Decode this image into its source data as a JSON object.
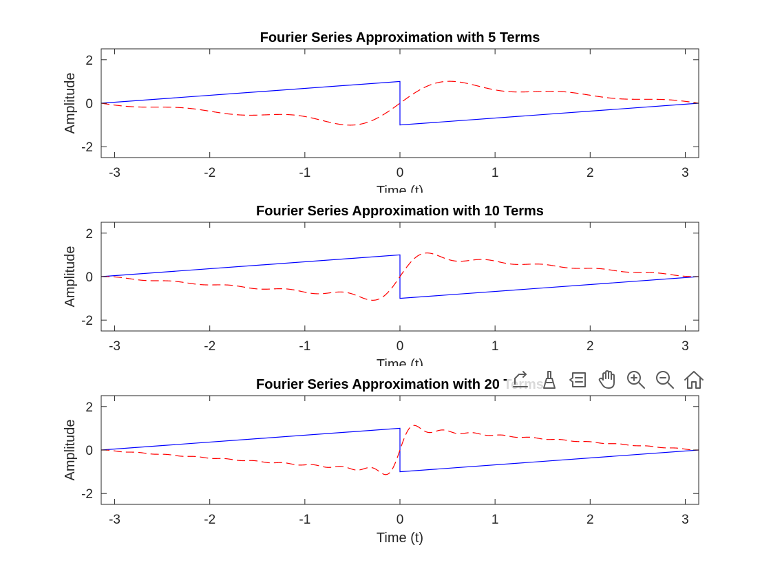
{
  "figure": {
    "background": "#ffffff"
  },
  "chart_data": [
    {
      "type": "line",
      "title": "Fourier Series Approximation with 5 Terms",
      "xlabel": "Time (t)",
      "ylabel": "Amplitude",
      "xlim": [
        -3.14159,
        3.14159
      ],
      "ylim": [
        -2.5,
        2.5
      ],
      "xticks": [
        -3,
        -2,
        -1,
        0,
        1,
        2,
        3
      ],
      "yticks": [
        -2,
        0,
        2
      ],
      "grid": false,
      "n_terms": 5,
      "series": [
        {
          "style": "solid",
          "color": "#0000ff",
          "function": "sawtooth (t/pi) - sign(t)"
        },
        {
          "style": "dashed",
          "color": "#ff0000",
          "function": "partial Fourier sum"
        }
      ]
    },
    {
      "type": "line",
      "title": "Fourier Series Approximation with 10 Terms",
      "xlabel": "Time (t)",
      "ylabel": "Amplitude",
      "xlim": [
        -3.14159,
        3.14159
      ],
      "ylim": [
        -2.5,
        2.5
      ],
      "xticks": [
        -3,
        -2,
        -1,
        0,
        1,
        2,
        3
      ],
      "yticks": [
        -2,
        0,
        2
      ],
      "grid": false,
      "n_terms": 10,
      "series": [
        {
          "style": "solid",
          "color": "#0000ff",
          "function": "sawtooth (t/pi) - sign(t)"
        },
        {
          "style": "dashed",
          "color": "#ff0000",
          "function": "partial Fourier sum"
        }
      ]
    },
    {
      "type": "line",
      "title": "Fourier Series Approximation with 20 Terms",
      "xlabel": "Time (t)",
      "ylabel": "Amplitude",
      "xlim": [
        -3.14159,
        3.14159
      ],
      "ylim": [
        -2.5,
        2.5
      ],
      "xticks": [
        -3,
        -2,
        -1,
        0,
        1,
        2,
        3
      ],
      "yticks": [
        -2,
        0,
        2
      ],
      "grid": false,
      "n_terms": 20,
      "series": [
        {
          "style": "solid",
          "color": "#0000ff",
          "function": "sawtooth (t/pi) - sign(t)"
        },
        {
          "style": "dashed",
          "color": "#ff0000",
          "function": "partial Fourier sum"
        }
      ]
    }
  ],
  "toolbar": {
    "icons": [
      "export-icon",
      "brush-icon",
      "data-tips-icon",
      "pan-icon",
      "zoom-in-icon",
      "zoom-out-icon",
      "home-icon"
    ]
  }
}
